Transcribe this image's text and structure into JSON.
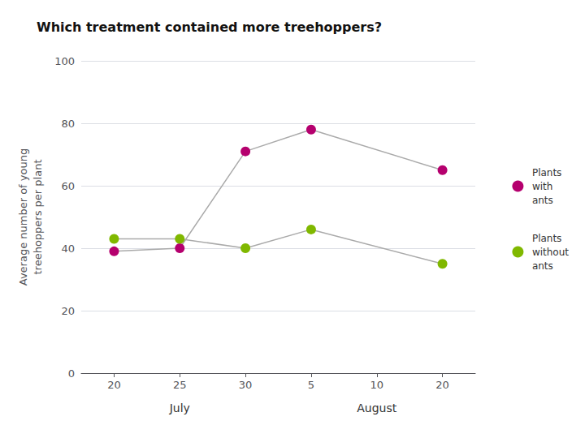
{
  "chart_data": {
    "type": "line",
    "title": "Which treatment contained more treehoppers?",
    "y_label": "Average number of young\ntreehoppers per plant",
    "categories": [
      "20",
      "25",
      "30",
      "5",
      "10",
      "20"
    ],
    "annotations": [
      "July",
      "August"
    ],
    "series": [
      {
        "name": "Plants\nwith\nants",
        "color": "#b5006e",
        "values": [
          39,
          40,
          71,
          78,
          null,
          65
        ]
      },
      {
        "name": "Plants\nwithout\nants",
        "color": "#80b800",
        "values": [
          43,
          43,
          40,
          46,
          null,
          35
        ]
      }
    ],
    "ylim": [
      0,
      100
    ],
    "yticks": [
      0,
      20,
      40,
      60,
      80,
      100
    ],
    "grid": true,
    "legend": "right",
    "marker": "circle"
  }
}
